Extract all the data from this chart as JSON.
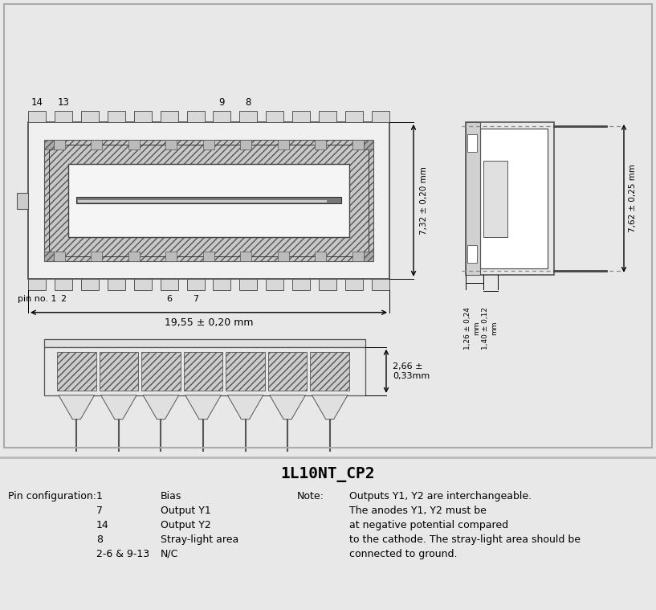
{
  "title": "1L10NT_CP2",
  "bg_color": "#e8e8e8",
  "diagram_bg": "#ffffff",
  "pin_config_label": "Pin configuration:",
  "pins": [
    {
      "num": "1",
      "func": "Bias"
    },
    {
      "num": "7",
      "func": "Output Y1"
    },
    {
      "num": "14",
      "func": "Output Y2"
    },
    {
      "num": "8",
      "func": "Stray-light area"
    },
    {
      "num": "2-6 & 9-13",
      "func": "N/C"
    }
  ],
  "note_label": "Note:",
  "note_lines": [
    "Outputs Y1, Y2 are interchangeable.",
    "The anodes Y1, Y2 must be",
    "at negative potential compared",
    "to the cathode. The stray-light area should be",
    "connected to ground."
  ],
  "dim_width": "19,55 ± 0,20 mm",
  "dim_height": "7,32 ± 0,20 mm",
  "dim_side_height": "7,62 ± 0,25 mm",
  "dim_bot_h": "2,66 ±\n0,33mm",
  "dim_side_w1": "1,26 ± 0,24\nmm",
  "dim_side_w2": "1,40 ± 0,12\nmm"
}
